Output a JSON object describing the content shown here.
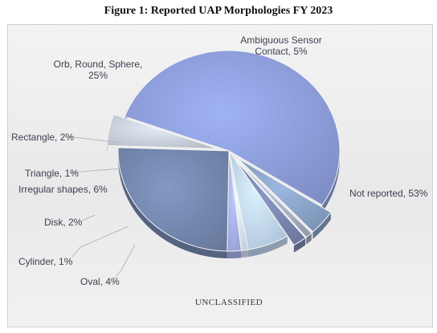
{
  "title": "Figure 1: Reported UAP Morphologies FY 2023",
  "footer": "UNCLASSIFIED",
  "chart_data": {
    "type": "pie",
    "title": "Figure 1: Reported UAP Morphologies FY 2023",
    "legend": "none",
    "slices": [
      {
        "key": "not_reported",
        "label_lines": [
          "Not reported, 53%"
        ],
        "value": 53,
        "color": "#8e9fdc",
        "exploded": false
      },
      {
        "key": "oval",
        "label_lines": [
          "Oval, 4%"
        ],
        "value": 4,
        "color": "#8aa4c8",
        "exploded": true
      },
      {
        "key": "cylinder",
        "label_lines": [
          "Cylinder, 1%"
        ],
        "value": 1,
        "color": "#a6b0c3",
        "exploded": true
      },
      {
        "key": "disk",
        "label_lines": [
          "Disk, 2%"
        ],
        "value": 2,
        "color": "#7b86b0",
        "exploded": true
      },
      {
        "key": "irregular",
        "label_lines": [
          "Irregular shapes, 6%"
        ],
        "value": 6,
        "color": "#c3d9f3",
        "exploded": false
      },
      {
        "key": "triangle",
        "label_lines": [
          "Triangle, 1%"
        ],
        "value": 1,
        "color": "#d9e7f7",
        "exploded": false
      },
      {
        "key": "rectangle",
        "label_lines": [
          "Rectangle, 2%"
        ],
        "value": 2,
        "color": "#a9b4ee",
        "exploded": false
      },
      {
        "key": "orb",
        "label_lines": [
          "Orb, Round, Sphere,",
          "25%"
        ],
        "value": 25,
        "color": "#7589b0",
        "exploded": false
      },
      {
        "key": "ambiguous",
        "label_lines": [
          "Ambiguous Sensor",
          "Contact, 5%"
        ],
        "value": 5,
        "color": "#cbd3dc",
        "exploded": true
      }
    ]
  }
}
